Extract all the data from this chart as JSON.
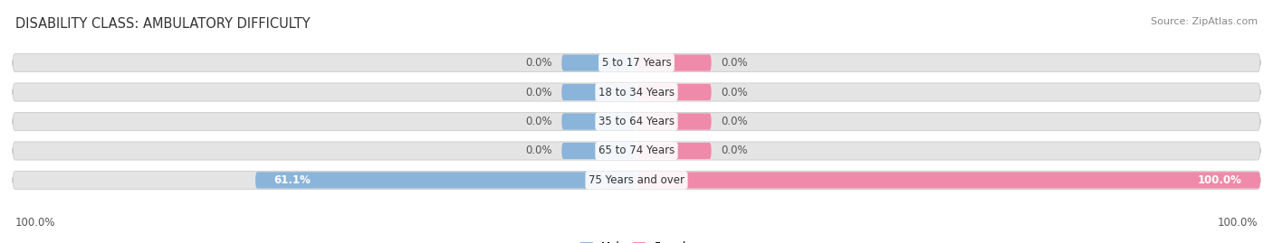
{
  "title": "DISABILITY CLASS: AMBULATORY DIFFICULTY",
  "source": "Source: ZipAtlas.com",
  "categories": [
    "5 to 17 Years",
    "18 to 34 Years",
    "35 to 64 Years",
    "65 to 74 Years",
    "75 Years and over"
  ],
  "male_values": [
    0.0,
    0.0,
    0.0,
    0.0,
    61.1
  ],
  "female_values": [
    0.0,
    0.0,
    0.0,
    0.0,
    100.0
  ],
  "male_color": "#8ab4d9",
  "female_color": "#f08aaa",
  "bar_bg_color": "#e4e4e4",
  "bar_bg_border_color": "#cccccc",
  "label_fontsize": 8.5,
  "title_fontsize": 10.5,
  "source_fontsize": 8,
  "axis_label_left": "100.0%",
  "axis_label_right": "100.0%",
  "max_val": 100.0,
  "background_color": "#ffffff",
  "zero_bar_width": 12.0,
  "bar_height": 0.62
}
